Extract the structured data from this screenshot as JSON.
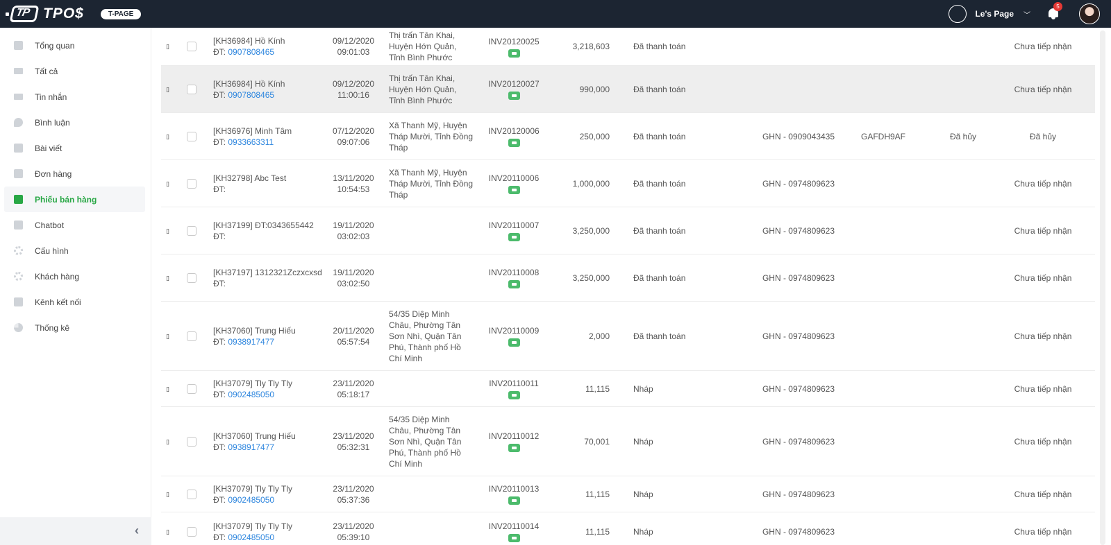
{
  "header": {
    "logo_mark": "TP",
    "logo_text": "TPO$",
    "badge": "T-PAGE",
    "page_name": "Le's Page",
    "notification_count": "5"
  },
  "sidebar": {
    "items": [
      {
        "label": "Tổng quan",
        "icon": "dashboard-icon"
      },
      {
        "label": "Tất cả",
        "icon": "envelope-icon"
      },
      {
        "label": "Tin nhắn",
        "icon": "envelope-icon"
      },
      {
        "label": "Bình luận",
        "icon": "chat-icon"
      },
      {
        "label": "Bài viết",
        "icon": "edit-icon"
      },
      {
        "label": "Đơn hàng",
        "icon": "cart-icon"
      },
      {
        "label": "Phiếu bán hàng",
        "icon": "receipt-icon",
        "active": true
      },
      {
        "label": "Chatbot",
        "icon": "robot-icon"
      },
      {
        "label": "Cấu hình",
        "icon": "gear-icon"
      },
      {
        "label": "Khách hàng",
        "icon": "gear-icon"
      },
      {
        "label": "Kênh kết nối",
        "icon": "facebook-icon"
      },
      {
        "label": "Thống kê",
        "icon": "pie-chart-icon"
      }
    ],
    "collapse_label": "‹"
  },
  "colors": {
    "header_bg": "#1c2532",
    "accent": "#28a745",
    "link": "#2e86de",
    "tag": "#4cbb6c"
  },
  "rows": [
    {
      "cust": "[KH36984] Hồ Kính",
      "phone_prefix": "ĐT: ",
      "phone": "0907808465",
      "date": "09/12/2020",
      "time": "09:01:03",
      "address": "Thị trấn Tân Khai, Huyện Hớn Quản, Tỉnh Bình Phước",
      "invoice": "INV20120025",
      "amount": "3,218,603",
      "status": "Đã thanh toán",
      "ship": "",
      "track": "",
      "pstat": "",
      "recv": "Chưa tiếp nhận",
      "h": 55
    },
    {
      "cust": "[KH36984] Hồ Kính",
      "phone_prefix": "ĐT: ",
      "phone": "0907808465",
      "date": "09/12/2020",
      "time": "11:00:16",
      "address": "Thị trấn Tân Khai, Huyện Hớn Quản, Tỉnh Bình Phước",
      "invoice": "INV20120027",
      "amount": "990,000",
      "status": "Đã thanh toán",
      "ship": "",
      "track": "",
      "pstat": "",
      "recv": "Chưa tiếp nhận",
      "h": 68,
      "hover": true
    },
    {
      "cust": "[KH36976] Minh Tâm",
      "phone_prefix": "ĐT: ",
      "phone": "0933663311",
      "date": "07/12/2020",
      "time": "09:07:06",
      "address": "Xã Thanh Mỹ, Huyện Tháp Mười, Tỉnh Đồng Tháp",
      "invoice": "INV20120006",
      "amount": "250,000",
      "status": "Đã thanh toán",
      "ship": "GHN - 0909043435",
      "track": "GAFDH9AF",
      "pstat": "Đã hủy",
      "recv": "Đã hủy",
      "h": 68
    },
    {
      "cust": "[KH32798] Abc Test",
      "phone_prefix": "ĐT:",
      "phone": "",
      "date": "13/11/2020",
      "time": "10:54:53",
      "address": "Xã Thanh Mỹ, Huyện Tháp Mười, Tỉnh Đồng Tháp",
      "invoice": "INV20110006",
      "amount": "1,000,000",
      "status": "Đã thanh toán",
      "ship": "GHN - 0974809623",
      "track": "",
      "pstat": "",
      "recv": "Chưa tiếp nhận",
      "h": 68
    },
    {
      "cust": "[KH37199] ĐT:0343655442",
      "phone_prefix": "ĐT:",
      "phone": "",
      "date": "19/11/2020",
      "time": "03:02:03",
      "address": "",
      "invoice": "INV20110007",
      "amount": "3,250,000",
      "status": "Đã thanh toán",
      "ship": "GHN - 0974809623",
      "track": "",
      "pstat": "",
      "recv": "Chưa tiếp nhận",
      "h": 68
    },
    {
      "cust": "[KH37197] 1312321Zczxcxsd",
      "phone_prefix": "ĐT:",
      "phone": "",
      "date": "19/11/2020",
      "time": "03:02:50",
      "address": "",
      "invoice": "INV20110008",
      "amount": "3,250,000",
      "status": "Đã thanh toán",
      "ship": "GHN - 0974809623",
      "track": "",
      "pstat": "",
      "recv": "Chưa tiếp nhận",
      "h": 68
    },
    {
      "cust": "[KH37060] Trung Hiếu",
      "phone_prefix": "ĐT: ",
      "phone": "0938917477",
      "date": "20/11/2020",
      "time": "05:57:54",
      "address": "54/35 Diệp Minh Châu, Phường Tân Sơn Nhì, Quận Tân Phú, Thành phố Hồ Chí Minh",
      "invoice": "INV20110009",
      "amount": "2,000",
      "status": "Đã thanh toán",
      "ship": "GHN - 0974809623",
      "track": "",
      "pstat": "",
      "recv": "Chưa tiếp nhận",
      "h": 100
    },
    {
      "cust": "[KH37079] Tly Tly Tly",
      "phone_prefix": "ĐT: ",
      "phone": "0902485050",
      "date": "23/11/2020",
      "time": "05:18:17",
      "address": "",
      "invoice": "INV20110011",
      "amount": "11,115",
      "status": "Nháp",
      "ship": "GHN - 0974809623",
      "track": "",
      "pstat": "",
      "recv": "Chưa tiếp nhận",
      "h": 52
    },
    {
      "cust": "[KH37060] Trung Hiếu",
      "phone_prefix": "ĐT: ",
      "phone": "0938917477",
      "date": "23/11/2020",
      "time": "05:32:31",
      "address": "54/35 Diệp Minh Châu, Phường Tân Sơn Nhì, Quận Tân Phú, Thành phố Hồ Chí Minh",
      "invoice": "INV20110012",
      "amount": "70,001",
      "status": "Nháp",
      "ship": "GHN - 0974809623",
      "track": "",
      "pstat": "",
      "recv": "Chưa tiếp nhận",
      "h": 100
    },
    {
      "cust": "[KH37079] Tly Tly Tly",
      "phone_prefix": "ĐT: ",
      "phone": "0902485050",
      "date": "23/11/2020",
      "time": "05:37:36",
      "address": "",
      "invoice": "INV20110013",
      "amount": "11,115",
      "status": "Nháp",
      "ship": "GHN - 0974809623",
      "track": "",
      "pstat": "",
      "recv": "Chưa tiếp nhận",
      "h": 52
    },
    {
      "cust": "[KH37079] Tly Tly Tly",
      "phone_prefix": "ĐT: ",
      "phone": "0902485050",
      "date": "23/11/2020",
      "time": "05:39:10",
      "address": "",
      "invoice": "INV20110014",
      "amount": "11,115",
      "status": "Nháp",
      "ship": "GHN - 0974809623",
      "track": "",
      "pstat": "",
      "recv": "Chưa tiếp nhận",
      "h": 56
    }
  ]
}
